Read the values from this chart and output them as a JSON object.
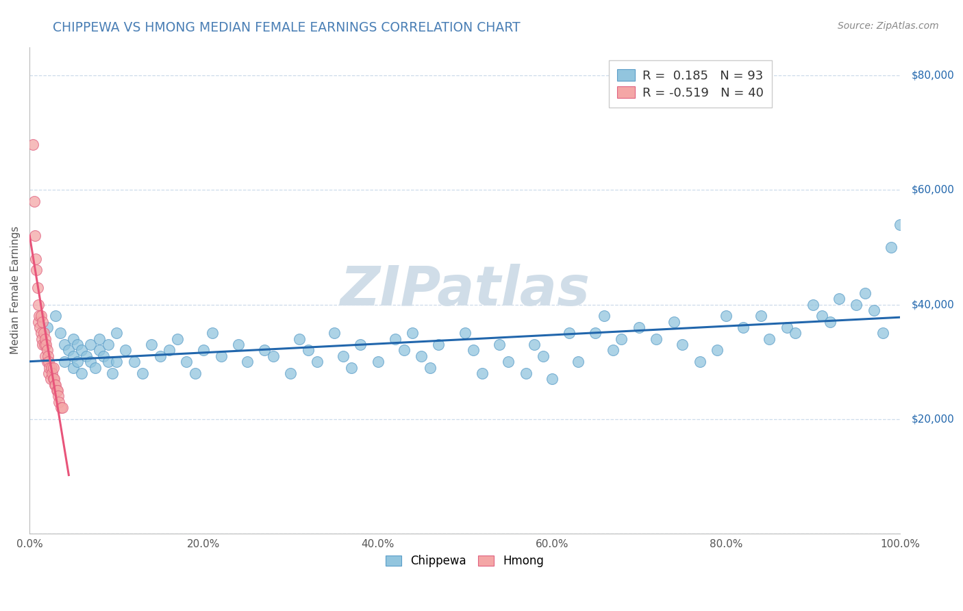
{
  "title": "CHIPPEWA VS HMONG MEDIAN FEMALE EARNINGS CORRELATION CHART",
  "source": "Source: ZipAtlas.com",
  "ylabel": "Median Female Earnings",
  "xlim": [
    0.0,
    1.0
  ],
  "ylim": [
    0,
    85000
  ],
  "xticks": [
    0.0,
    0.2,
    0.4,
    0.6,
    0.8,
    1.0
  ],
  "xticklabels": [
    "0.0%",
    "20.0%",
    "40.0%",
    "60.0%",
    "80.0%",
    "100.0%"
  ],
  "ytick_values": [
    0,
    20000,
    40000,
    60000,
    80000
  ],
  "ytick_labels": [
    "",
    "$20,000",
    "$40,000",
    "$60,000",
    "$80,000"
  ],
  "chippewa_color": "#92c5de",
  "chippewa_edge": "#5a9dc8",
  "hmong_color": "#f4a6a6",
  "hmong_edge": "#e06080",
  "trend_blue": "#2166ac",
  "trend_pink": "#e8547a",
  "title_color": "#4a7fb5",
  "source_color": "#888888",
  "ylabel_color": "#555555",
  "tick_color": "#555555",
  "ytick_color": "#2166ac",
  "R_chippewa": 0.185,
  "N_chippewa": 93,
  "R_hmong": -0.519,
  "N_hmong": 40,
  "watermark": "ZIPatlas",
  "watermark_color": "#d0dde8",
  "background_color": "#ffffff",
  "grid_color": "#c8d8e8",
  "chippewa_x": [
    0.02,
    0.03,
    0.035,
    0.04,
    0.04,
    0.045,
    0.05,
    0.05,
    0.05,
    0.055,
    0.055,
    0.06,
    0.06,
    0.065,
    0.07,
    0.07,
    0.075,
    0.08,
    0.08,
    0.085,
    0.09,
    0.09,
    0.095,
    0.1,
    0.1,
    0.11,
    0.12,
    0.13,
    0.14,
    0.15,
    0.16,
    0.17,
    0.18,
    0.19,
    0.2,
    0.21,
    0.22,
    0.24,
    0.25,
    0.27,
    0.28,
    0.3,
    0.31,
    0.32,
    0.33,
    0.35,
    0.36,
    0.37,
    0.38,
    0.4,
    0.42,
    0.43,
    0.44,
    0.45,
    0.46,
    0.47,
    0.5,
    0.51,
    0.52,
    0.54,
    0.55,
    0.57,
    0.58,
    0.59,
    0.6,
    0.62,
    0.63,
    0.65,
    0.66,
    0.67,
    0.68,
    0.7,
    0.72,
    0.74,
    0.75,
    0.77,
    0.79,
    0.8,
    0.82,
    0.84,
    0.85,
    0.87,
    0.88,
    0.9,
    0.91,
    0.92,
    0.93,
    0.95,
    0.96,
    0.97,
    0.98,
    0.99,
    1.0
  ],
  "chippewa_y": [
    36000,
    38000,
    35000,
    33000,
    30000,
    32000,
    31000,
    34000,
    29000,
    33000,
    30000,
    32000,
    28000,
    31000,
    33000,
    30000,
    29000,
    32000,
    34000,
    31000,
    30000,
    33000,
    28000,
    35000,
    30000,
    32000,
    30000,
    28000,
    33000,
    31000,
    32000,
    34000,
    30000,
    28000,
    32000,
    35000,
    31000,
    33000,
    30000,
    32000,
    31000,
    28000,
    34000,
    32000,
    30000,
    35000,
    31000,
    29000,
    33000,
    30000,
    34000,
    32000,
    35000,
    31000,
    29000,
    33000,
    35000,
    32000,
    28000,
    33000,
    30000,
    28000,
    33000,
    31000,
    27000,
    35000,
    30000,
    35000,
    38000,
    32000,
    34000,
    36000,
    34000,
    37000,
    33000,
    30000,
    32000,
    38000,
    36000,
    38000,
    34000,
    36000,
    35000,
    40000,
    38000,
    37000,
    41000,
    40000,
    42000,
    39000,
    35000,
    50000,
    54000
  ],
  "hmong_x": [
    0.004,
    0.005,
    0.006,
    0.007,
    0.008,
    0.009,
    0.01,
    0.01,
    0.011,
    0.012,
    0.013,
    0.013,
    0.014,
    0.015,
    0.015,
    0.016,
    0.017,
    0.018,
    0.018,
    0.019,
    0.02,
    0.02,
    0.021,
    0.022,
    0.022,
    0.023,
    0.024,
    0.025,
    0.026,
    0.027,
    0.027,
    0.028,
    0.029,
    0.03,
    0.031,
    0.032,
    0.033,
    0.034,
    0.036,
    0.038
  ],
  "hmong_y": [
    68000,
    58000,
    52000,
    48000,
    46000,
    43000,
    40000,
    37000,
    38000,
    36000,
    35000,
    38000,
    34000,
    37000,
    33000,
    35000,
    33000,
    34000,
    31000,
    33000,
    32000,
    30000,
    31000,
    30000,
    28000,
    29000,
    27000,
    29000,
    28000,
    27000,
    29000,
    27000,
    26000,
    26000,
    25000,
    25000,
    24000,
    23000,
    22000,
    22000
  ]
}
